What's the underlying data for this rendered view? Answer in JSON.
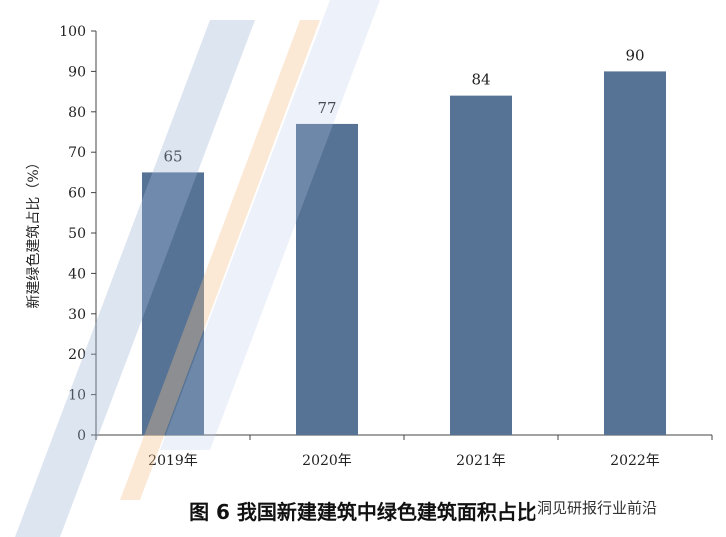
{
  "chart_data": {
    "type": "bar",
    "categories": [
      "2019年",
      "2020年",
      "2021年",
      "2022年"
    ],
    "values": [
      65,
      77,
      84,
      90
    ],
    "data_labels": [
      "65",
      "77",
      "84",
      "90"
    ],
    "title": "图 6  我国新建建筑中绿色建筑面积占比",
    "xlabel": "",
    "ylabel": "新建绿色建筑占比（%）",
    "ylim": [
      0,
      100
    ],
    "yticks": [
      0,
      10,
      20,
      30,
      40,
      50,
      60,
      70,
      80,
      90,
      100
    ],
    "grid": false,
    "bar_color": "#567395"
  },
  "watermark": {
    "source_text": "洞见研报行业前沿"
  }
}
